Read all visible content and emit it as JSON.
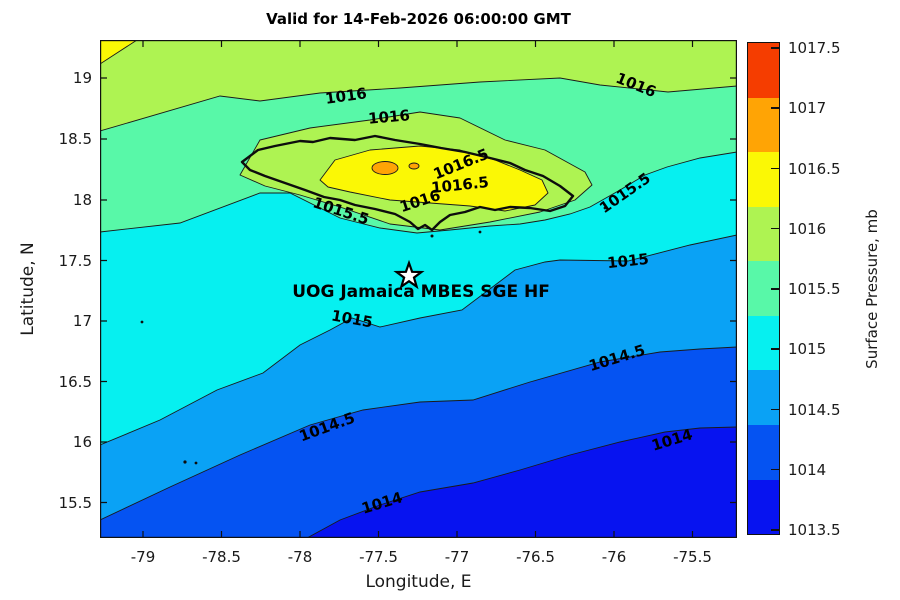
{
  "title": "Valid for 14-Feb-2026 06:00:00 GMT",
  "axes": {
    "xlabel": "Longitude, E",
    "ylabel": "Latitude, N",
    "x_ticks": [
      "-79",
      "-78.5",
      "-78",
      "-77.5",
      "-77",
      "-76.5",
      "-76",
      "-75.5"
    ],
    "y_ticks": [
      "19",
      "18.5",
      "18",
      "17.5",
      "17",
      "16.5",
      "16",
      "15.5"
    ]
  },
  "colorbar": {
    "label": "Surface Pressure, mb",
    "ticks": [
      "1017.5",
      "1017",
      "1016.5",
      "1016",
      "1015.5",
      "1015",
      "1014.5",
      "1014",
      "1013.5"
    ],
    "segment_colors_top_to_bottom": [
      "#f53d00",
      "#ffa405",
      "#fbf805",
      "#aef352",
      "#58f8a8",
      "#06f0f0",
      "#0aa2f5",
      "#0553f2",
      "#0713f0"
    ]
  },
  "chart_data": {
    "type": "heatmap",
    "subtype": "filled-contour-map",
    "title": "Valid for 14-Feb-2026 06:00:00 GMT",
    "xlabel": "Longitude, E",
    "ylabel": "Latitude, N",
    "xlim": [
      -79.3,
      -75.2
    ],
    "ylim": [
      15.2,
      19.3
    ],
    "x_tick_values": [
      -79,
      -78.5,
      -78,
      -77.5,
      -77,
      -76.5,
      -76,
      -75.5
    ],
    "y_tick_values": [
      19,
      18.5,
      18,
      17.5,
      17,
      16.5,
      16,
      15.5
    ],
    "colorbar_label": "Surface Pressure, mb",
    "colorbar_tick_values": [
      1017.5,
      1017,
      1016.5,
      1016,
      1015.5,
      1015,
      1014.5,
      1014,
      1013.5
    ],
    "contour_interval_mb": 0.5,
    "bands": [
      {
        "range_mb": "1013.5-1014",
        "color": "#0713f0"
      },
      {
        "range_mb": "1014-1014.5",
        "color": "#0553f2"
      },
      {
        "range_mb": "1014.5-1015",
        "color": "#0aa2f5"
      },
      {
        "range_mb": "1015-1015.5",
        "color": "#06f0f0"
      },
      {
        "range_mb": "1015.5-1016",
        "color": "#58f8a8"
      },
      {
        "range_mb": "1016-1016.5",
        "color": "#aef352"
      },
      {
        "range_mb": "1016.5-1017",
        "color": "#fbf805"
      },
      {
        "range_mb": "1017-1017.5",
        "color": "#ffa405"
      },
      {
        "range_mb": "above 1017.5",
        "color": "#f53d00"
      }
    ],
    "contour_line_labels": [
      {
        "text": "1016",
        "level_mb": 1016,
        "lon": -77.71,
        "lat": 18.85
      },
      {
        "text": "1016",
        "level_mb": 1016,
        "lon": -75.86,
        "lat": 18.94
      },
      {
        "text": "1016",
        "level_mb": 1016,
        "lon": -77.43,
        "lat": 18.68
      },
      {
        "text": "1016",
        "level_mb": 1016,
        "lon": -77.24,
        "lat": 17.99
      },
      {
        "text": "1016.5",
        "level_mb": 1016.5,
        "lon": -76.97,
        "lat": 18.29
      },
      {
        "text": "1016.5",
        "level_mb": 1016.5,
        "lon": -76.98,
        "lat": 18.12
      },
      {
        "text": "1015.5",
        "level_mb": 1015.5,
        "lon": -77.74,
        "lat": 17.91
      },
      {
        "text": "1015.5",
        "level_mb": 1015.5,
        "lon": -75.93,
        "lat": 18.05
      },
      {
        "text": "1015",
        "level_mb": 1015,
        "lon": -77.67,
        "lat": 17.02
      },
      {
        "text": "1015",
        "level_mb": 1015,
        "lon": -75.91,
        "lat": 17.49
      },
      {
        "text": "1014.5",
        "level_mb": 1014.5,
        "lon": -77.83,
        "lat": 16.13
      },
      {
        "text": "1014.5",
        "level_mb": 1014.5,
        "lon": -75.98,
        "lat": 16.7
      },
      {
        "text": "1014",
        "level_mb": 1014,
        "lon": -77.48,
        "lat": 15.5
      },
      {
        "text": "1014",
        "level_mb": 1014,
        "lon": -75.63,
        "lat": 16.02
      }
    ],
    "station": {
      "label": "UOG Jamaica MBES SGE HF",
      "marker": "white pentagram star",
      "lon": -77.3,
      "lat": 17.4
    },
    "features": [
      {
        "name": "pressure-field",
        "description": "Surface pressure decreasing from ~1016.5 mb in the northwest to ~1013.5 mb in the southeast"
      },
      {
        "name": "local-high",
        "description": "Closed high-pressure cells (1016.5 to 1017.5 mb) over Jamaica"
      },
      {
        "name": "coastline",
        "description": "Jamaica coastline outline drawn in thick black"
      }
    ]
  }
}
